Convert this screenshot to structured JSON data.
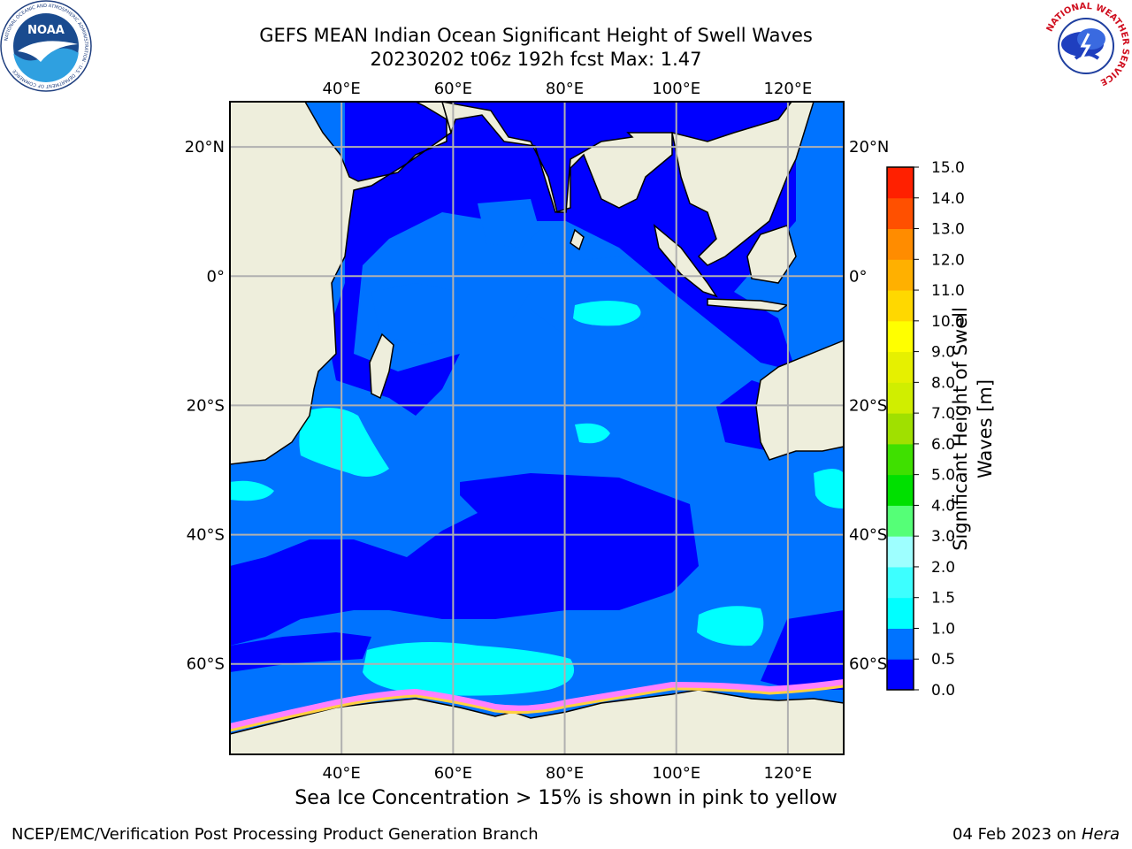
{
  "header": {
    "title_line1": "GEFS MEAN Indian Ocean Significant Height of Swell Waves",
    "title_line2": "20230202 t06z 192h fcst   Max: 1.47"
  },
  "logos": {
    "left": {
      "name": "noaa-logo",
      "text": "NOAA",
      "ring_text": "NATIONAL OCEANIC AND ATMOSPHERIC ADMINISTRATION · U.S. DEPARTMENT OF COMMERCE"
    },
    "right": {
      "name": "nws-logo",
      "ring_text": "NATIONAL WEATHER SERVICE"
    }
  },
  "map": {
    "projection": "equirectangular",
    "lon_range": [
      20,
      130
    ],
    "lat_range": [
      -74,
      27
    ],
    "lon_ticks": [
      {
        "value": 40,
        "label": "40°E"
      },
      {
        "value": 60,
        "label": "60°E"
      },
      {
        "value": 80,
        "label": "80°E"
      },
      {
        "value": 100,
        "label": "100°E"
      },
      {
        "value": 120,
        "label": "120°E"
      }
    ],
    "lat_ticks": [
      {
        "value": 20,
        "label": "20°N"
      },
      {
        "value": 0,
        "label": "0°"
      },
      {
        "value": -20,
        "label": "20°S"
      },
      {
        "value": -40,
        "label": "40°S"
      },
      {
        "value": -60,
        "label": "60°S"
      }
    ],
    "grid": true,
    "land_color": "#eeeedc",
    "grid_color": "#b0b0b0"
  },
  "colorbar": {
    "title_line1": "Significant Height of Swell",
    "title_line2": "Waves [m]",
    "levels": [
      {
        "value": 0.0,
        "label": "0.0",
        "color": "#0000ff"
      },
      {
        "value": 0.5,
        "label": "0.5",
        "color": "#0073ff"
      },
      {
        "value": 1.0,
        "label": "1.0",
        "color": "#00ffff"
      },
      {
        "value": 1.5,
        "label": "1.5",
        "color": "#3dffff"
      },
      {
        "value": 2.0,
        "label": "2.0",
        "color": "#9effff"
      },
      {
        "value": 3.0,
        "label": "3.0",
        "color": "#55ff77"
      },
      {
        "value": 4.0,
        "label": "4.0",
        "color": "#00e000"
      },
      {
        "value": 5.0,
        "label": "5.0",
        "color": "#3fe000"
      },
      {
        "value": 6.0,
        "label": "6.0",
        "color": "#a0e000"
      },
      {
        "value": 7.0,
        "label": "7.0",
        "color": "#d0ee00"
      },
      {
        "value": 8.0,
        "label": "8.0",
        "color": "#e6f000"
      },
      {
        "value": 9.0,
        "label": "9.0",
        "color": "#ffff00"
      },
      {
        "value": 10.0,
        "label": "10.0",
        "color": "#ffd800"
      },
      {
        "value": 11.0,
        "label": "11.0",
        "color": "#ffb000"
      },
      {
        "value": 12.0,
        "label": "12.0",
        "color": "#ff8c00"
      },
      {
        "value": 13.0,
        "label": "13.0",
        "color": "#ff5000"
      },
      {
        "value": 14.0,
        "label": "14.0",
        "color": "#ff2000"
      },
      {
        "value": 15.0,
        "label": "15.0",
        "color": null
      }
    ]
  },
  "footer": {
    "note": "Sea Ice Concentration > 15% is shown in pink to yellow",
    "credit_left": "NCEP/EMC/Verification Post Processing Product Generation Branch",
    "credit_right_date": "04 Feb 2023 on",
    "credit_right_host": "Hera"
  }
}
